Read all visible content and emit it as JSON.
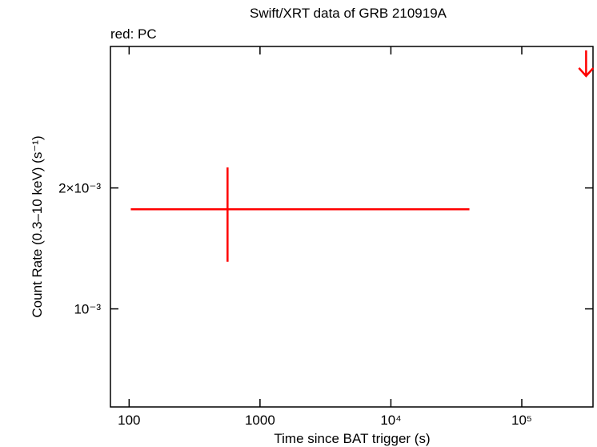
{
  "chart_data": {
    "type": "scatter",
    "title": "Swift/XRT data of GRB 210919A",
    "subtitle": "red: PC",
    "x_label": "Time since BAT trigger (s)",
    "y_label": "Count Rate (0.3–10 keV) (s⁻¹)",
    "xlog": true,
    "ylog": true,
    "xlim": [
      72,
      350000
    ],
    "ylim": [
      0.00057,
      0.0045
    ],
    "xticks": [
      100,
      1000,
      {
        "value": 10000,
        "label": "10⁴"
      },
      {
        "value": 100000,
        "label": "10⁵"
      }
    ],
    "yticks": [
      {
        "value": 0.001,
        "label": "10⁻³"
      },
      {
        "value": 0.002,
        "label": "2×10⁻³"
      }
    ],
    "color": "#ff0000",
    "points": {
      "x": [
        565
      ],
      "x_low": [
        103
      ],
      "x_high": [
        39800
      ],
      "y": [
        0.00177
      ],
      "y_low": [
        0.00131
      ],
      "y_high": [
        0.00225
      ]
    },
    "upper_limits": {
      "x": [
        310000
      ],
      "y": [
        0.0044
      ]
    }
  }
}
